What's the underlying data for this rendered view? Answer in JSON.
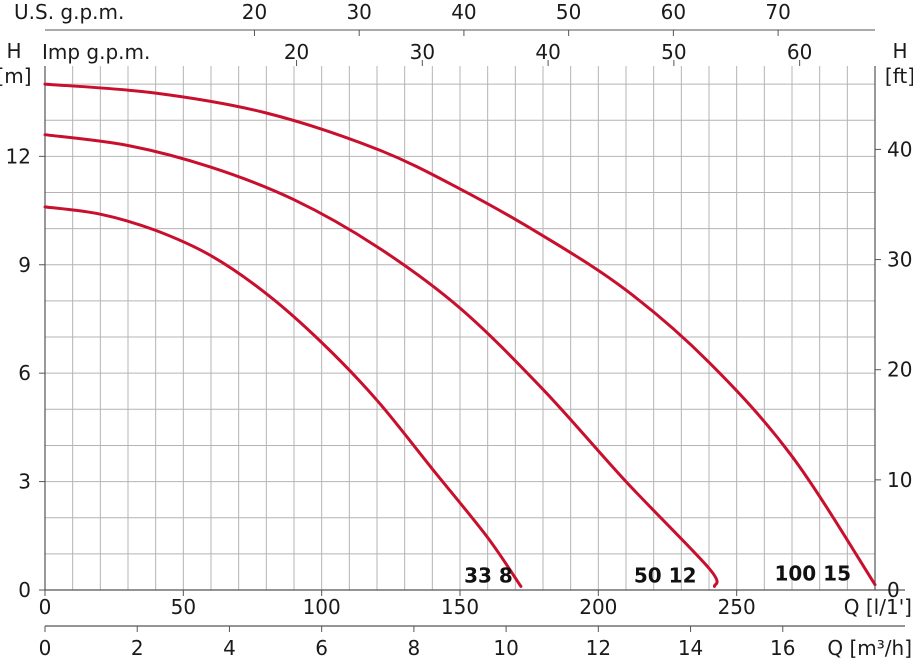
{
  "chart_data": {
    "type": "line",
    "colors": {
      "curve": "#c8102e",
      "grid": "#b4b4b4",
      "axis": "#555555",
      "text": "#1a1a1a"
    },
    "axes": {
      "x_primary": {
        "label": "Q [l/1']",
        "range": [
          0,
          300
        ],
        "ticks": [
          0,
          50,
          100,
          150,
          200,
          250
        ]
      },
      "x_m3h": {
        "label": "Q [m³/h]",
        "range": [
          0,
          18
        ],
        "ticks": [
          0,
          2,
          4,
          6,
          8,
          10,
          12,
          14,
          16
        ]
      },
      "x_us_gpm": {
        "label": "U.S. g.p.m.",
        "ticks": [
          20,
          30,
          40,
          50,
          60,
          70
        ]
      },
      "x_imp_gpm": {
        "label": "Imp g.p.m.",
        "ticks": [
          20,
          30,
          40,
          50,
          60
        ]
      },
      "y_left": {
        "label_top": "H",
        "unit": "[m]",
        "range": [
          0,
          14.5
        ],
        "ticks": [
          0,
          3,
          6,
          9,
          12
        ]
      },
      "y_right": {
        "label_top": "H",
        "unit": "[ft]",
        "ticks": [
          0,
          10,
          20,
          30,
          40
        ]
      }
    },
    "grid": true,
    "series": [
      {
        "name": "33 8",
        "points": [
          [
            0,
            10.6
          ],
          [
            20,
            10.4
          ],
          [
            40,
            9.95
          ],
          [
            60,
            9.25
          ],
          [
            80,
            8.2
          ],
          [
            100,
            6.85
          ],
          [
            120,
            5.25
          ],
          [
            140,
            3.35
          ],
          [
            160,
            1.45
          ],
          [
            172,
            0.1
          ]
        ]
      },
      {
        "name": "50 12",
        "points": [
          [
            0,
            12.6
          ],
          [
            30,
            12.3
          ],
          [
            60,
            11.7
          ],
          [
            90,
            10.8
          ],
          [
            120,
            9.5
          ],
          [
            150,
            7.8
          ],
          [
            180,
            5.55
          ],
          [
            210,
            3.0
          ],
          [
            240,
            0.6
          ],
          [
            242,
            0.1
          ]
        ]
      },
      {
        "name": "100 15",
        "points": [
          [
            0,
            14.0
          ],
          [
            40,
            13.75
          ],
          [
            80,
            13.2
          ],
          [
            120,
            12.2
          ],
          [
            150,
            11.1
          ],
          [
            180,
            9.8
          ],
          [
            210,
            8.3
          ],
          [
            240,
            6.3
          ],
          [
            270,
            3.7
          ],
          [
            300,
            0.15
          ]
        ]
      }
    ]
  }
}
